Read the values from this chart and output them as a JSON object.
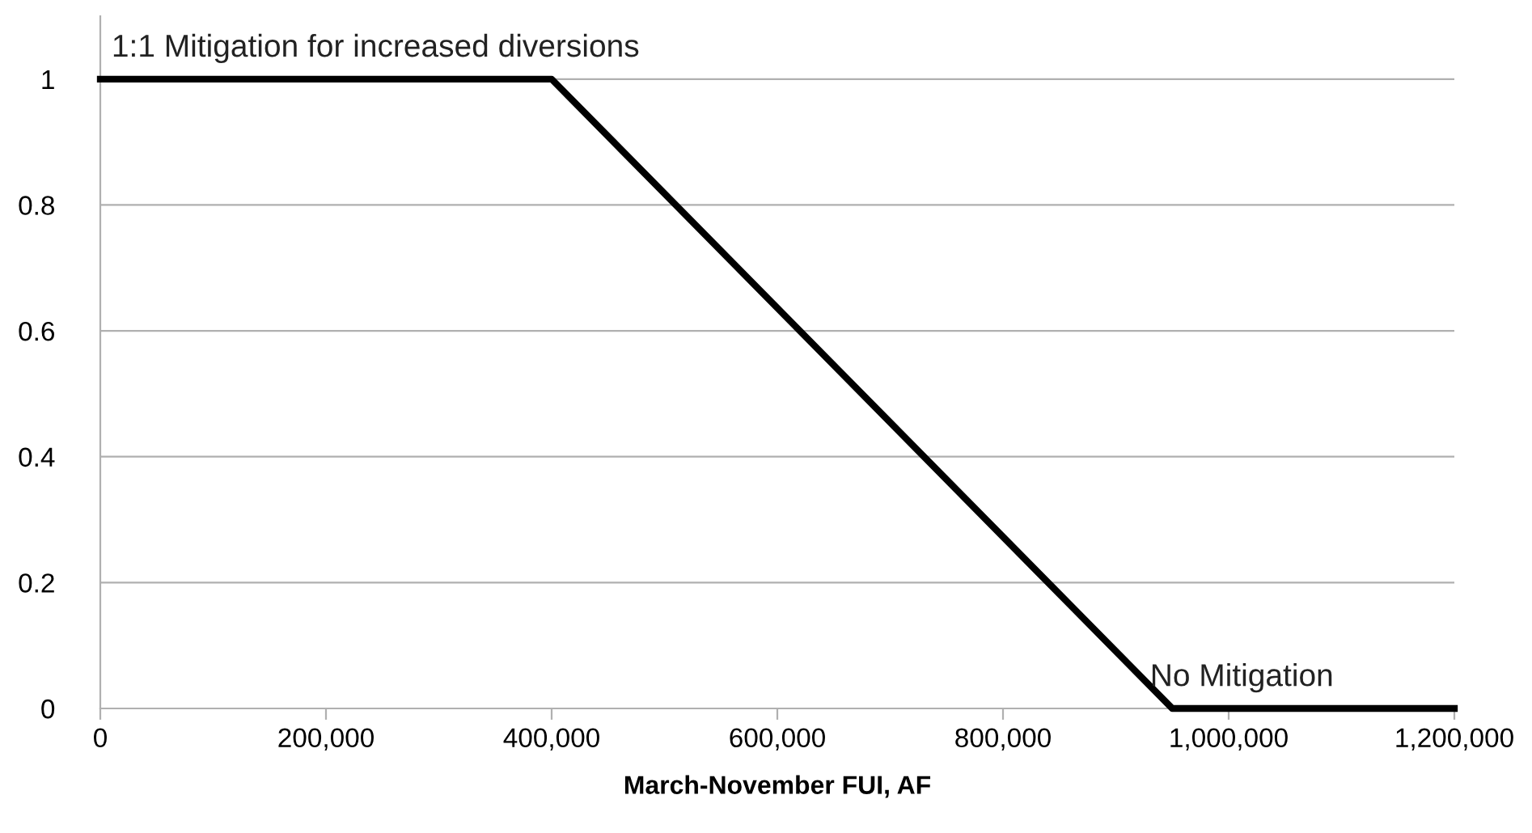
{
  "chart_data": {
    "type": "line",
    "xlabel": "March-November FUI, AF",
    "x": [
      0,
      400000,
      950000,
      1200000
    ],
    "series": [
      {
        "color": "#000000",
        "values": [
          1,
          1,
          0,
          0
        ]
      }
    ],
    "xlim": [
      0,
      1200000
    ],
    "ylim": [
      0,
      1.1
    ],
    "xticks": [
      {
        "value": 0,
        "label": "0"
      },
      {
        "value": 200000,
        "label": "200,000"
      },
      {
        "value": 400000,
        "label": "400,000"
      },
      {
        "value": 600000,
        "label": "600,000"
      },
      {
        "value": 800000,
        "label": "800,000"
      },
      {
        "value": 1000000,
        "label": "1,000,000"
      },
      {
        "value": 1200000,
        "label": "1,200,000"
      }
    ],
    "yticks": [
      0,
      0.2,
      0.4,
      0.6,
      0.8,
      1
    ],
    "grid": "y",
    "marker": "none",
    "line_style": "solid",
    "annotations": [
      {
        "text": "1:1 Mitigation for increased diversions",
        "x": 0,
        "y": 1
      },
      {
        "text": "No Mitigation",
        "x": 1000000,
        "y": 0
      }
    ]
  }
}
